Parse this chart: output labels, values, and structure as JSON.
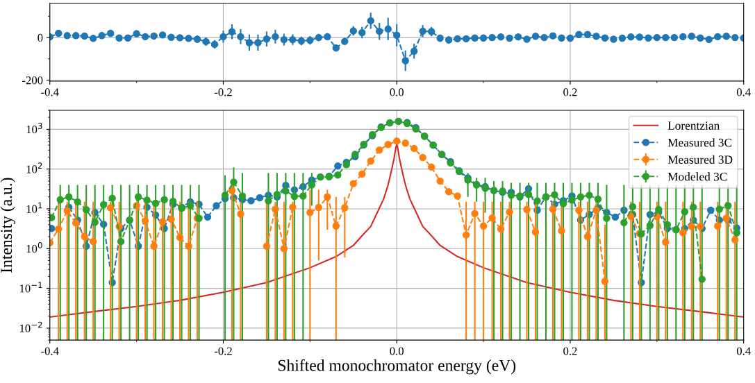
{
  "chart_data": [
    {
      "type": "line",
      "x": [
        -0.4,
        -0.39,
        -0.38,
        -0.37,
        -0.36,
        -0.35,
        -0.34,
        -0.33,
        -0.32,
        -0.31,
        -0.3,
        -0.29,
        -0.28,
        -0.27,
        -0.26,
        -0.25,
        -0.24,
        -0.23,
        -0.22,
        -0.21,
        -0.2,
        -0.19,
        -0.18,
        -0.17,
        -0.16,
        -0.15,
        -0.14,
        -0.13,
        -0.12,
        -0.11,
        -0.1,
        -0.09,
        -0.08,
        -0.07,
        -0.06,
        -0.05,
        -0.04,
        -0.03,
        -0.02,
        -0.01,
        0,
        0.01,
        0.02,
        0.03,
        0.04,
        0.05,
        0.06,
        0.07,
        0.08,
        0.09,
        0.1,
        0.11,
        0.12,
        0.13,
        0.14,
        0.15,
        0.16,
        0.17,
        0.18,
        0.19,
        0.2,
        0.21,
        0.22,
        0.23,
        0.24,
        0.25,
        0.26,
        0.27,
        0.28,
        0.29,
        0.3,
        0.31,
        0.32,
        0.33,
        0.34,
        0.35,
        0.36,
        0.37,
        0.38,
        0.39,
        0.4
      ],
      "xlim": [
        -0.4,
        0.4
      ],
      "ylim": [
        -205,
        160
      ],
      "xticks": [
        {
          "value": -0.4,
          "label": "-0.4"
        },
        {
          "value": -0.3,
          "label": null
        },
        {
          "value": -0.2,
          "label": "-0.2"
        },
        {
          "value": -0.1,
          "label": null
        },
        {
          "value": 0,
          "label": "0.0"
        },
        {
          "value": 0.1,
          "label": null
        },
        {
          "value": 0.2,
          "label": "0.2"
        },
        {
          "value": 0.3,
          "label": null
        },
        {
          "value": 0.4,
          "label": "0.4"
        }
      ],
      "yticks": [
        {
          "value": -200,
          "label": "-200"
        },
        {
          "value": -100,
          "label": null
        },
        0,
        {
          "value": 100,
          "label": null
        }
      ],
      "grid": true,
      "series": [
        {
          "color": "#1f77b4",
          "marker": "circle",
          "line_style": "dashed",
          "values": [
            3,
            20,
            9,
            9,
            7,
            -4,
            9,
            20,
            -2,
            -2,
            18,
            4,
            7,
            12,
            1,
            -1,
            -4,
            -8,
            -19,
            -32,
            4,
            27,
            4,
            -24,
            -24,
            -7,
            4,
            -10,
            -10,
            -16,
            -13,
            0,
            4,
            -49,
            -18,
            31,
            23,
            79,
            29,
            40,
            11,
            -109,
            -64,
            30,
            28,
            -3,
            -11,
            -6,
            -6,
            -2,
            -2,
            0,
            3,
            -3,
            3,
            -8,
            6,
            0,
            8,
            -2,
            -3,
            14,
            14,
            6,
            -2,
            -8,
            -3,
            3,
            2,
            -2,
            0,
            0,
            0,
            4,
            6,
            -2,
            -9,
            4,
            6,
            0,
            -2
          ],
          "errors": [
            15,
            15,
            15,
            15,
            15,
            15,
            15,
            15,
            15,
            15,
            15,
            15,
            15,
            15,
            15,
            15,
            15,
            18,
            20,
            20,
            28,
            35,
            35,
            38,
            38,
            35,
            32,
            28,
            25,
            20,
            20,
            17,
            17,
            17,
            17,
            22,
            27,
            38,
            40,
            52,
            52,
            48,
            35,
            28,
            22,
            17,
            17,
            15,
            15,
            15,
            15,
            15,
            15,
            15,
            15,
            15,
            15,
            15,
            15,
            15,
            15,
            15,
            15,
            15,
            15,
            15,
            15,
            15,
            15,
            15,
            15,
            15,
            15,
            15,
            15,
            15,
            15,
            15,
            15,
            15,
            15
          ]
        }
      ]
    },
    {
      "type": "line",
      "x": [
        -0.4,
        -0.39,
        -0.38,
        -0.37,
        -0.36,
        -0.35,
        -0.34,
        -0.33,
        -0.32,
        -0.31,
        -0.3,
        -0.29,
        -0.28,
        -0.27,
        -0.26,
        -0.25,
        -0.24,
        -0.23,
        -0.22,
        -0.21,
        -0.2,
        -0.19,
        -0.18,
        -0.17,
        -0.16,
        -0.15,
        -0.14,
        -0.13,
        -0.12,
        -0.11,
        -0.1,
        -0.09,
        -0.08,
        -0.07,
        -0.06,
        -0.05,
        -0.04,
        -0.03,
        -0.02,
        -0.01,
        0,
        0.01,
        0.02,
        0.03,
        0.04,
        0.05,
        0.06,
        0.07,
        0.08,
        0.09,
        0.1,
        0.11,
        0.12,
        0.13,
        0.14,
        0.15,
        0.16,
        0.17,
        0.18,
        0.19,
        0.2,
        0.21,
        0.22,
        0.23,
        0.24,
        0.25,
        0.26,
        0.27,
        0.28,
        0.29,
        0.3,
        0.31,
        0.32,
        0.33,
        0.34,
        0.35,
        0.36,
        0.37,
        0.38,
        0.39
      ],
      "xlabel": "Shifted monochromator energy (eV)",
      "ylabel": "Intensity (a.u.)",
      "log": "y",
      "xlim": [
        -0.4,
        0.4
      ],
      "ylim": [
        0.005,
        3000
      ],
      "xticks": [
        {
          "value": -0.4,
          "label": "-0.4"
        },
        {
          "value": -0.3,
          "label": null
        },
        {
          "value": -0.2,
          "label": "-0.2"
        },
        {
          "value": -0.1,
          "label": null
        },
        {
          "value": 0,
          "label": "0.0"
        },
        {
          "value": 0.1,
          "label": null
        },
        {
          "value": 0.2,
          "label": "0.2"
        },
        {
          "value": 0.3,
          "label": null
        },
        {
          "value": 0.4,
          "label": "0.4"
        }
      ],
      "yticks": [
        {
          "value": 0.01,
          "label": "10$^{−2}$"
        },
        {
          "value": 0.1,
          "label": "10$^{−1}$"
        },
        {
          "value": 1,
          "label": "10$^{0}$"
        },
        {
          "value": 10,
          "label": "10$^{1}$"
        },
        {
          "value": 100,
          "label": "10$^{2}$"
        },
        {
          "value": 1000,
          "label": "10$^{3}$"
        }
      ],
      "grid": true,
      "legend": "top right",
      "series": [
        {
          "name": "Lorentzian",
          "color": "#d62728",
          "marker": "none",
          "line_style": "solid",
          "x": [
            -0.4,
            -0.35,
            -0.3,
            -0.25,
            -0.2,
            -0.15,
            -0.1,
            -0.07,
            -0.05,
            -0.04,
            -0.03,
            -0.02,
            -0.015,
            -0.01,
            -0.007,
            -0.005,
            -0.003,
            -0.002,
            -0.001,
            0,
            0.001,
            0.002,
            0.003,
            0.005,
            0.007,
            0.01,
            0.015,
            0.02,
            0.03,
            0.04,
            0.05,
            0.07,
            0.1,
            0.15,
            0.2,
            0.25,
            0.3,
            0.35,
            0.4
          ],
          "values": [
            0.019,
            0.026,
            0.035,
            0.05,
            0.08,
            0.14,
            0.33,
            0.63,
            1.2,
            2.1,
            3.6,
            10.5,
            18,
            40,
            75,
            118,
            190,
            260,
            350,
            420,
            350,
            260,
            190,
            118,
            75,
            40,
            18,
            10.5,
            3.6,
            2.1,
            1.2,
            0.63,
            0.33,
            0.14,
            0.08,
            0.05,
            0.035,
            0.026,
            0.019
          ]
        },
        {
          "name": "Measured 3C",
          "color": "#1f77b4",
          "marker": "circle",
          "line_style": "dashed",
          "x": [
            -0.398,
            -0.388,
            -0.378,
            -0.368,
            -0.358,
            -0.348,
            -0.338,
            -0.328,
            -0.318,
            -0.308,
            -0.298,
            -0.288,
            -0.278,
            -0.268,
            -0.258,
            -0.248,
            -0.238,
            -0.228,
            -0.218,
            -0.208,
            -0.198,
            -0.188,
            -0.178,
            -0.168,
            -0.158,
            -0.148,
            -0.138,
            -0.128,
            -0.118,
            -0.108,
            -0.098,
            -0.088,
            -0.078,
            -0.068,
            -0.058,
            -0.048,
            -0.038,
            -0.028,
            -0.018,
            -0.008,
            0.002,
            0.012,
            0.022,
            0.032,
            0.042,
            0.052,
            0.062,
            0.072,
            0.082,
            0.092,
            0.102,
            0.112,
            0.122,
            0.132,
            0.142,
            0.152,
            0.162,
            0.172,
            0.182,
            0.192,
            0.202,
            0.212,
            0.222,
            0.232,
            0.242,
            0.252,
            0.262,
            0.272,
            0.282,
            0.292,
            0.302,
            0.312,
            0.322,
            0.332,
            0.342,
            0.352,
            0.362,
            0.372,
            0.382,
            0.392
          ],
          "values": [
            3.2,
            null,
            11,
            5.2,
            1.15,
            8.1,
            4.1,
            0.14,
            3.2,
            5.2,
            1.15,
            11,
            7.0,
            3.2,
            13,
            11,
            15,
            13,
            6.2,
            12,
            18,
            19,
            17,
            16,
            19,
            22,
            20,
            39,
            30,
            36,
            53,
            63,
            66,
            119,
            148,
            205,
            407,
            690,
            1140,
            1450,
            1580,
            1480,
            1100,
            670,
            400,
            230,
            154,
            90,
            60,
            41,
            36,
            29,
            26,
            26,
            20,
            32,
            9.2,
            20,
            13,
            16,
            21,
            5.2,
            7.2,
            10.6,
            8.1,
            6.2,
            9.2,
            7.2,
            0.14,
            7.2,
            8.3,
            3.2,
            3.0,
            3.2,
            5.2,
            3.2,
            9.2,
            5.2,
            5.2,
            3.3
          ]
        },
        {
          "name": "Measured 3D",
          "color": "#ff7f0e",
          "marker": "circle",
          "line_style": "dashed",
          "values": [
            1.4,
            3.1,
            8.9,
            4.4,
            2.0,
            1.5,
            null,
            10.6,
            3.6,
            null,
            12,
            5.0,
            1.15,
            4.7,
            5.5,
            1.9,
            1.15,
            5.8,
            null,
            null,
            null,
            29,
            7.4,
            null,
            null,
            1.15,
            9.8,
            1.0,
            11,
            null,
            8.1,
            10.8,
            20,
            3.7,
            10.6,
            43,
            75,
            158,
            300,
            415,
            505,
            450,
            330,
            195,
            112,
            50,
            27,
            21,
            2.2,
            7.6,
            3.7,
            5.9,
            3.1,
            8.3,
            null,
            9.6,
            2.6,
            null,
            9.8,
            2.8,
            null,
            9.2,
            2.0,
            9.2,
            0.15,
            null,
            null,
            6.4,
            2.4,
            null,
            6.4,
            1.45,
            null,
            2.5,
            3.6,
            3.6,
            null,
            3.7,
            5.8,
            1.66
          ],
          "errors": [
            null,
            [
              0.005,
              15
            ],
            [
              0.005,
              15
            ],
            [
              0.005,
              15
            ],
            [
              0.005,
              15
            ],
            [
              0.005,
              15
            ],
            null,
            [
              0.005,
              15
            ],
            [
              0.005,
              15
            ],
            null,
            [
              0.005,
              15
            ],
            [
              0.005,
              15
            ],
            [
              0.005,
              15
            ],
            [
              0.005,
              15
            ],
            [
              0.005,
              15
            ],
            [
              0.005,
              15
            ],
            [
              0.005,
              15
            ],
            [
              0.005,
              15
            ],
            null,
            null,
            null,
            [
              0.005,
              45
            ],
            [
              0.005,
              15
            ],
            null,
            null,
            [
              0.005,
              15
            ],
            [
              0.005,
              15
            ],
            [
              0.005,
              15
            ],
            [
              0.005,
              15
            ],
            null,
            [
              0.005,
              30
            ],
            [
              0.5,
              30
            ],
            [
              3,
              30
            ],
            [
              0.005,
              20
            ],
            [
              0.6,
              20
            ],
            null,
            null,
            null,
            null,
            null,
            null,
            null,
            null,
            null,
            null,
            null,
            null,
            null,
            [
              0.005,
              15
            ],
            [
              0.005,
              15
            ],
            [
              0.005,
              15
            ],
            [
              0.005,
              15
            ],
            [
              0.005,
              15
            ],
            [
              0.005,
              15
            ],
            null,
            [
              0.005,
              15
            ],
            [
              0.005,
              15
            ],
            null,
            [
              0.005,
              15
            ],
            [
              0.005,
              15
            ],
            null,
            [
              0.005,
              15
            ],
            [
              0.005,
              15
            ],
            [
              0.005,
              15
            ],
            [
              0.005,
              4
            ],
            null,
            null,
            [
              0.005,
              15
            ],
            [
              0.005,
              15
            ],
            null,
            [
              0.005,
              15
            ],
            [
              0.005,
              15
            ],
            null,
            [
              0.005,
              15
            ],
            [
              0.005,
              15
            ],
            [
              0.005,
              15
            ],
            null,
            [
              0.005,
              15
            ],
            [
              0.005,
              15
            ],
            [
              0.005,
              15
            ]
          ]
        },
        {
          "name": "Modeled 3C",
          "color": "#2ca02c",
          "marker": "circle",
          "line_style": "dashed",
          "x": [
            -0.398,
            -0.388,
            -0.378,
            -0.368,
            -0.358,
            -0.348,
            -0.338,
            -0.328,
            -0.318,
            -0.308,
            -0.298,
            -0.288,
            -0.278,
            -0.268,
            -0.258,
            -0.248,
            -0.238,
            -0.228,
            -0.218,
            -0.208,
            -0.198,
            -0.188,
            -0.178,
            -0.168,
            -0.158,
            -0.148,
            -0.138,
            -0.128,
            -0.118,
            -0.108,
            -0.098,
            -0.088,
            -0.078,
            -0.068,
            -0.058,
            -0.048,
            -0.038,
            -0.028,
            -0.018,
            -0.008,
            0.002,
            0.012,
            0.022,
            0.032,
            0.042,
            0.052,
            0.062,
            0.072,
            0.082,
            0.092,
            0.102,
            0.112,
            0.122,
            0.132,
            0.142,
            0.152,
            0.162,
            0.172,
            0.182,
            0.192,
            0.202,
            0.212,
            0.222,
            0.232,
            0.242,
            0.252,
            0.262,
            0.272,
            0.282,
            0.292,
            0.302,
            0.312,
            0.322,
            0.332,
            0.342,
            0.352,
            0.362,
            0.372,
            0.382,
            0.392
          ],
          "values": [
            6.0,
            17,
            20,
            15,
            9.5,
            4.6,
            12.7,
            18.5,
            1.5,
            5.2,
            20,
            16.5,
            13.8,
            17,
            15.4,
            10.3,
            12,
            5.8,
            null,
            null,
            22,
            47,
            21,
            null,
            null,
            15.8,
            23,
            28,
            20.6,
            21,
            40,
            63,
            64,
            71,
            129,
            235,
            418,
            735,
            1110,
            1450,
            1580,
            1400,
            1020,
            670,
            400,
            235,
            143,
            87,
            53,
            40,
            33,
            29,
            28,
            22,
            21,
            23,
            15.8,
            20,
            22.6,
            13.4,
            16.6,
            20,
            22,
            17.5,
            5.8,
            null,
            4.5,
            11.3,
            2.35,
            3.8,
            9.6,
            4.0,
            2.95,
            8.4,
            11,
            0.17,
            null,
            9.8,
            12,
            2.5
          ],
          "errors": [
            null,
            [
              0.005,
              40
            ],
            [
              0.005,
              40
            ],
            [
              0.005,
              40
            ],
            [
              0.005,
              40
            ],
            [
              0.005,
              40
            ],
            [
              0.005,
              40
            ],
            [
              0.005,
              40
            ],
            [
              0.005,
              40
            ],
            [
              0.005,
              40
            ],
            [
              0.005,
              40
            ],
            [
              0.005,
              40
            ],
            [
              0.005,
              40
            ],
            [
              0.005,
              40
            ],
            [
              0.005,
              40
            ],
            [
              0.005,
              40
            ],
            [
              0.005,
              40
            ],
            [
              0.005,
              40
            ],
            null,
            null,
            [
              0.005,
              70
            ],
            [
              0.005,
              110
            ],
            [
              0.005,
              80
            ],
            null,
            null,
            [
              0.005,
              80
            ],
            [
              0.005,
              80
            ],
            [
              0.005,
              80
            ],
            [
              0.005,
              80
            ],
            [
              0.005,
              80
            ],
            [
              12,
              80
            ],
            null,
            null,
            null,
            null,
            null,
            null,
            null,
            null,
            null,
            null,
            null,
            null,
            null,
            null,
            null,
            null,
            null,
            [
              20,
              80
            ],
            [
              15,
              60
            ],
            [
              8,
              60
            ],
            [
              0.005,
              50
            ],
            [
              0.005,
              50
            ],
            [
              0.005,
              45
            ],
            [
              0.005,
              45
            ],
            [
              0.005,
              45
            ],
            [
              0.005,
              45
            ],
            [
              0.005,
              45
            ],
            [
              0.005,
              45
            ],
            [
              0.005,
              45
            ],
            [
              0.005,
              45
            ],
            [
              0.005,
              45
            ],
            [
              0.005,
              45
            ],
            [
              0.005,
              45
            ],
            [
              0.005,
              40
            ],
            null,
            [
              0.005,
              40
            ],
            [
              0.005,
              40
            ],
            [
              0.005,
              40
            ],
            [
              0.005,
              40
            ],
            [
              0.005,
              40
            ],
            [
              0.005,
              40
            ],
            [
              0.005,
              40
            ],
            [
              0.005,
              40
            ],
            [
              0.005,
              40
            ],
            [
              0.005,
              40
            ],
            null,
            [
              0.005,
              40
            ],
            [
              0.005,
              40
            ],
            [
              0.005,
              40
            ]
          ]
        }
      ]
    }
  ]
}
